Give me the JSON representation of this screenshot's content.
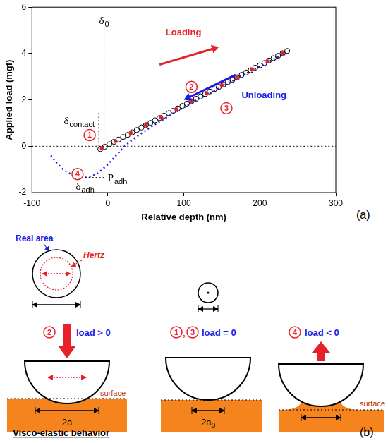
{
  "chart_data": {
    "type": "scatter",
    "panel": "(a)",
    "x_label": "Relative depth (nm)",
    "y_label": "Applied load (mgf)",
    "xlim": [
      -100,
      300
    ],
    "xticks": [
      -100,
      0,
      100,
      200,
      300
    ],
    "ylim": [
      -2,
      6
    ],
    "yticks": [
      -2,
      0,
      2,
      4,
      6
    ],
    "grid": false,
    "series": [
      {
        "type": "scatter",
        "marker": "open_circle",
        "color": "#000000",
        "x": [
          -10,
          -4,
          2,
          8,
          14,
          20,
          26,
          32,
          38,
          44,
          50,
          56,
          62,
          68,
          74,
          80,
          86,
          92,
          98,
          104,
          110,
          116,
          122,
          128,
          134,
          140,
          146,
          152,
          158,
          164,
          170,
          176,
          182,
          188,
          194,
          200,
          206,
          212,
          218,
          224,
          230,
          236
        ],
        "values": [
          -0.12,
          -0.02,
          0.09,
          0.19,
          0.29,
          0.4,
          0.49,
          0.6,
          0.7,
          0.81,
          0.91,
          1.01,
          1.12,
          1.22,
          1.32,
          1.43,
          1.53,
          1.63,
          1.74,
          1.84,
          1.94,
          2.05,
          2.15,
          2.25,
          2.36,
          2.46,
          2.56,
          2.66,
          2.77,
          2.87,
          2.97,
          3.08,
          3.18,
          3.28,
          3.39,
          3.49,
          3.59,
          3.7,
          3.8,
          3.9,
          4.01,
          4.11
        ]
      },
      {
        "type": "scatter",
        "marker": "circle",
        "color": "#e8202a",
        "x": [
          -8,
          10,
          30,
          50,
          70,
          90,
          110,
          130,
          150,
          170,
          190,
          210,
          230
        ],
        "values": [
          -0.09,
          0.22,
          0.57,
          0.91,
          1.26,
          1.6,
          1.94,
          2.29,
          2.63,
          2.97,
          3.32,
          3.66,
          4.01
        ]
      },
      {
        "type": "line",
        "line_style": "dotted",
        "color": "#1a1ae6",
        "x": [
          -75,
          -68,
          -60,
          -52,
          -44,
          -37,
          -30,
          -23,
          -15,
          -8,
          0,
          8,
          15,
          22,
          30,
          45,
          60,
          80,
          100,
          125,
          150,
          175,
          200,
          220,
          235
        ],
        "values": [
          -0.4,
          -0.7,
          -0.97,
          -1.15,
          -1.27,
          -1.33,
          -1.35,
          -1.31,
          -1.2,
          -1.02,
          -0.78,
          -0.5,
          -0.25,
          0.0,
          0.22,
          0.58,
          0.9,
          1.3,
          1.68,
          2.13,
          2.57,
          3.02,
          3.45,
          3.78,
          4.02
        ]
      }
    ],
    "reference_line_y": 0,
    "annotations": {
      "loading": {
        "text": "Loading",
        "color": "#e8202a"
      },
      "unloading": {
        "text": "Unloading",
        "color": "#1a1ae6"
      }
    },
    "markers": {
      "delta_0": {
        "symbol": "δ",
        "sub": "0",
        "x": -5
      },
      "delta_contact": {
        "symbol": "δ",
        "sub": "contact",
        "x": -12
      },
      "delta_adh": {
        "symbol": "δ",
        "sub": "adh",
        "x": -30
      },
      "P_adh": {
        "symbol": "P",
        "sub": "adh",
        "y": -1.35
      }
    },
    "steps": [
      "1",
      "2",
      "3",
      "4"
    ]
  },
  "diagram": {
    "panel": "(b)",
    "caption": "Visco-elastic behavior",
    "states": [
      {
        "steps": [
          "2"
        ],
        "load": "load > 0",
        "top_view": {
          "real": "Real area",
          "hertz": "Hertz"
        },
        "width": {
          "text": "2a"
        },
        "surface": "surface"
      },
      {
        "steps": [
          "1",
          "3"
        ],
        "separator": ",",
        "load": "load = 0",
        "width": {
          "text": "2a",
          "sub": "0"
        }
      },
      {
        "steps": [
          "4"
        ],
        "load": "load < 0",
        "surface": "surface"
      }
    ]
  }
}
